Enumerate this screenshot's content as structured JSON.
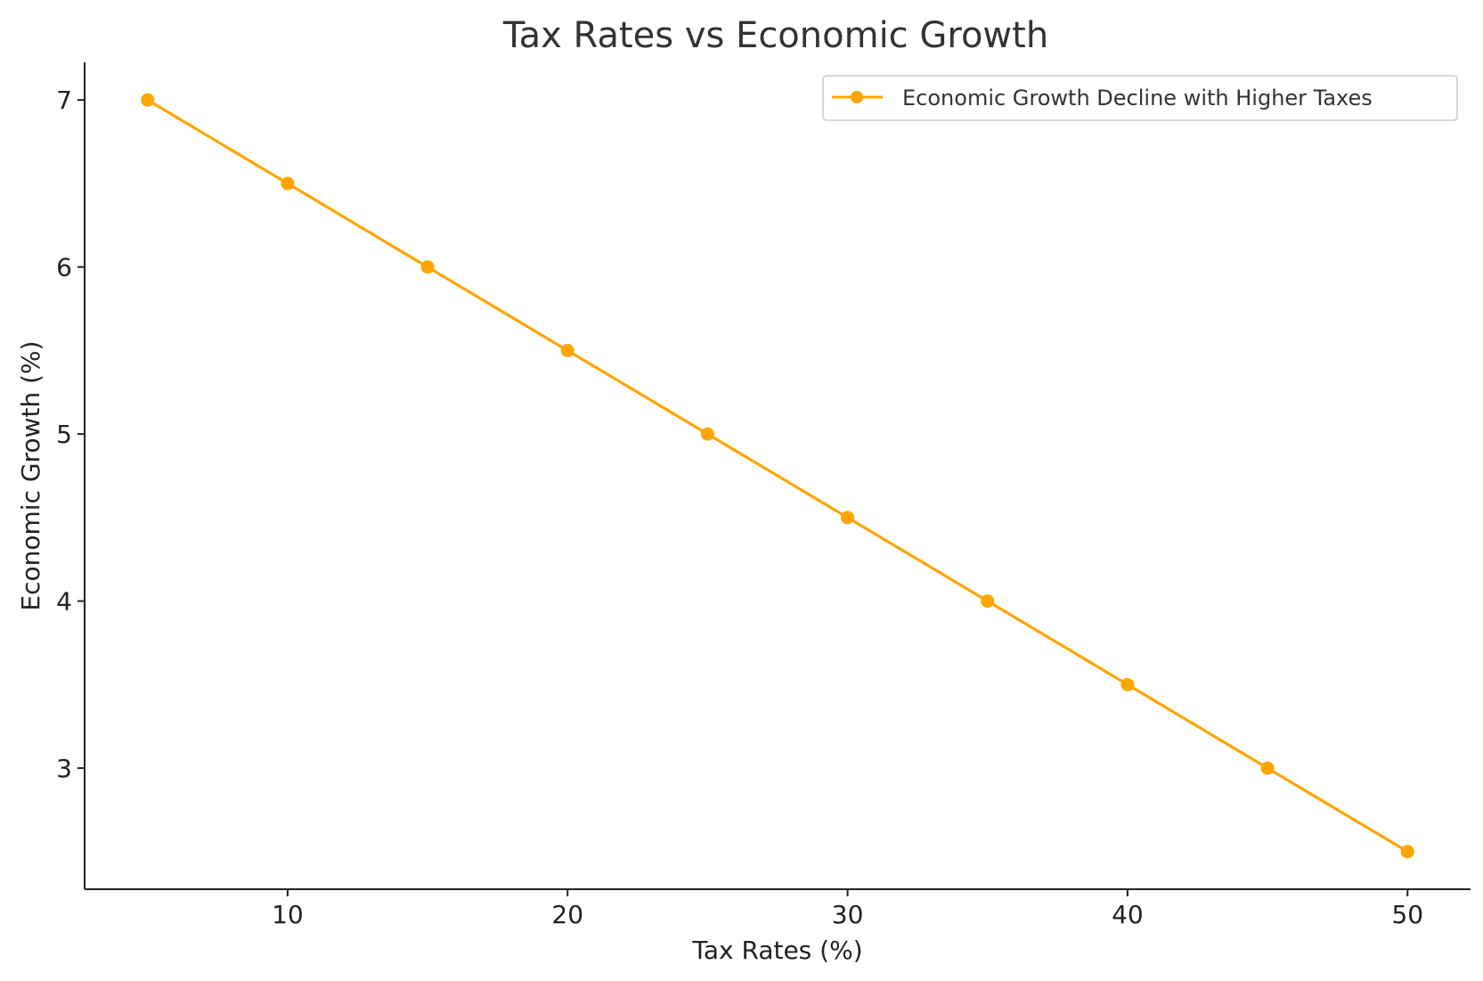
{
  "chart_data": {
    "type": "line",
    "title": "Tax Rates vs Economic Growth",
    "xlabel": "Tax Rates (%)",
    "ylabel": "Economic Growth (%)",
    "x": [
      5,
      10,
      15,
      20,
      25,
      30,
      35,
      40,
      45,
      50
    ],
    "series": [
      {
        "name": "Economic Growth Decline with Higher Taxes",
        "values": [
          7.0,
          6.5,
          6.0,
          5.5,
          5.0,
          4.5,
          4.0,
          3.5,
          3.0,
          2.5
        ],
        "color": "#FFA500",
        "marker": "circle"
      }
    ],
    "xlim": [
      2.75,
      52.25
    ],
    "ylim": [
      2.275,
      7.225
    ],
    "xticks": [
      10,
      20,
      30,
      40,
      50
    ],
    "yticks": [
      3,
      4,
      5,
      6,
      7
    ],
    "grid": false,
    "legend": "top-right"
  }
}
